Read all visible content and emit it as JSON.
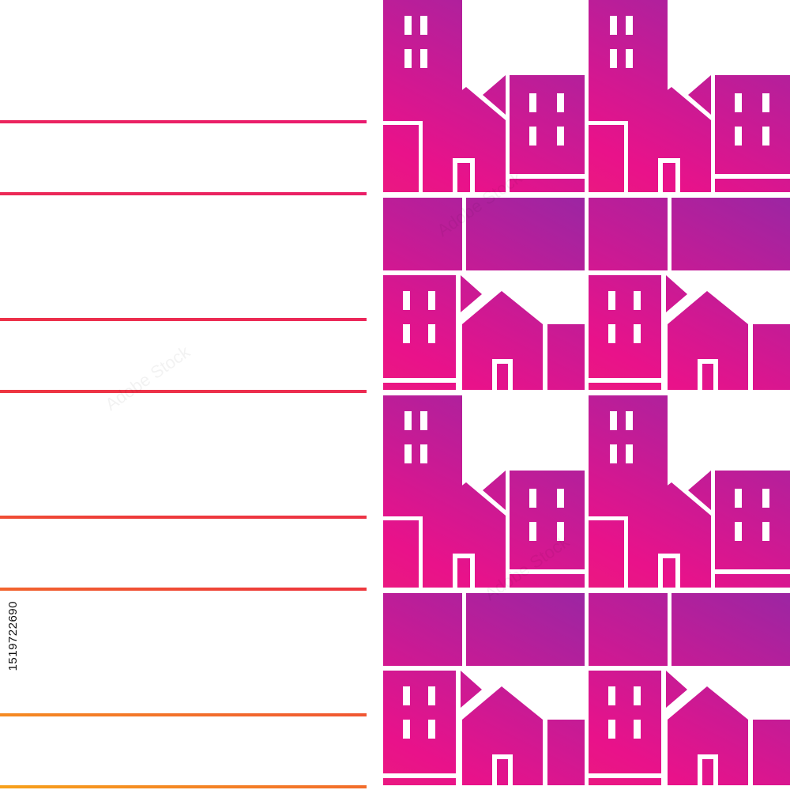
{
  "image_id_text": "1519722690",
  "watermark_text": "Adobe Stock",
  "colors": {
    "line_gradient": [
      "#f7a21b",
      "#ee3a3a",
      "#e8127c"
    ],
    "city_gradient": [
      "#f04a3a",
      "#e9128a",
      "#8b2aa8",
      "#1f3f9e"
    ],
    "background": "#ffffff",
    "stroke": "#ffffff"
  },
  "icons": [
    "horizontal-rule",
    "building-icon",
    "house-icon",
    "window-icon",
    "door-icon"
  ]
}
